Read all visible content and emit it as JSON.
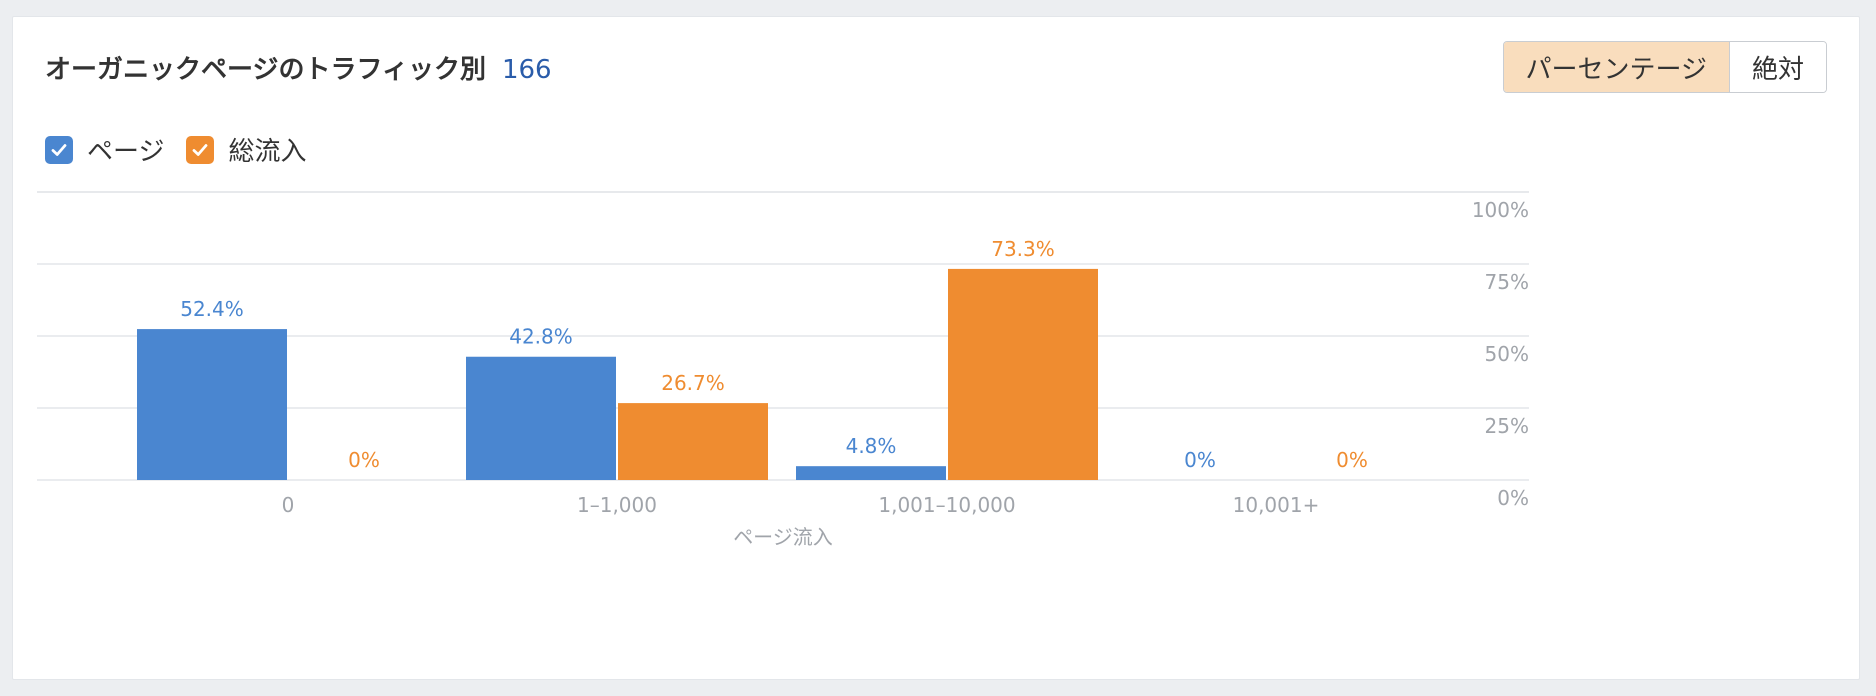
{
  "header": {
    "title": "オーガニックページのトラフィック別",
    "count": "166"
  },
  "toggle": {
    "percentage_label": "パーセンテージ",
    "absolute_label": "絶対"
  },
  "legend": {
    "pages_label": "ページ",
    "traffic_label": "総流入"
  },
  "colors": {
    "pages": "#4a86d0",
    "traffic": "#ef8c30",
    "grid": "#e4e6ea",
    "axis_text": "#a0a4aa"
  },
  "chart_data": {
    "type": "bar",
    "categories": [
      "0",
      "1–1,000",
      "1,001–10,000",
      "10,001+"
    ],
    "series": [
      {
        "name": "ページ",
        "values": [
          52.4,
          42.8,
          4.8,
          0
        ]
      },
      {
        "name": "総流入",
        "values": [
          0,
          26.7,
          73.3,
          0
        ]
      }
    ],
    "value_labels": [
      [
        "52.4%",
        "42.8%",
        "4.8%",
        "0%"
      ],
      [
        "0%",
        "26.7%",
        "73.3%",
        "0%"
      ]
    ],
    "xlabel": "ページ流入",
    "ylabel": "",
    "ylim": [
      0,
      100
    ],
    "yticks": [
      "100%",
      "75%",
      "50%",
      "25%",
      "0%"
    ],
    "grid": true,
    "legend_position": "top-left"
  }
}
